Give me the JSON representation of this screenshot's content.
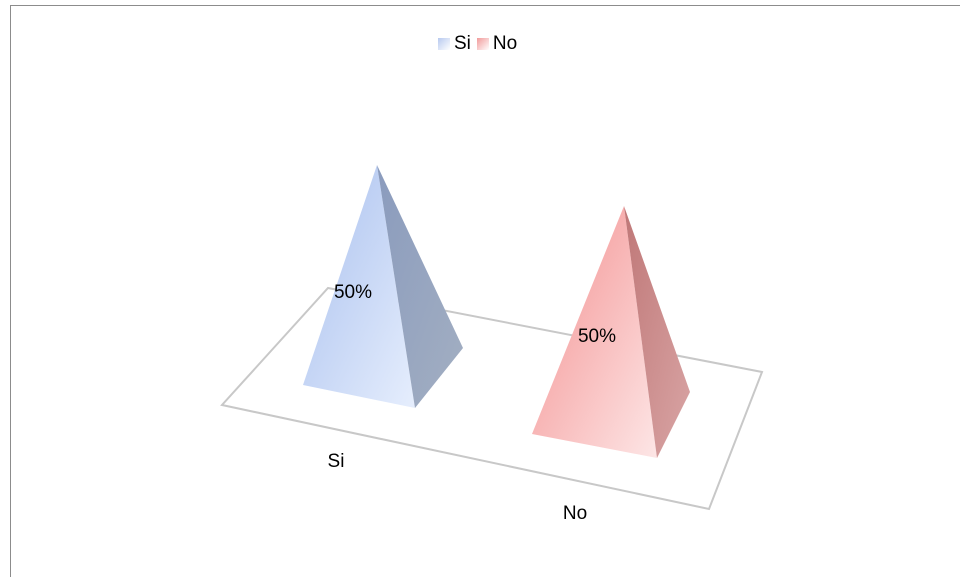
{
  "chart_data": {
    "type": "bar",
    "subtype": "3d-pyramid",
    "categories": [
      "Si",
      "No"
    ],
    "values": [
      50,
      50
    ],
    "data_labels": [
      "50%",
      "50%"
    ],
    "legend": {
      "position": "top",
      "entries": [
        {
          "label": "Si",
          "color": "#b7c9ef"
        },
        {
          "label": "No",
          "color": "#f19a9a"
        }
      ]
    },
    "ylim": [
      0,
      50
    ],
    "grid": false,
    "title": "",
    "xlabel": "",
    "ylabel": ""
  }
}
